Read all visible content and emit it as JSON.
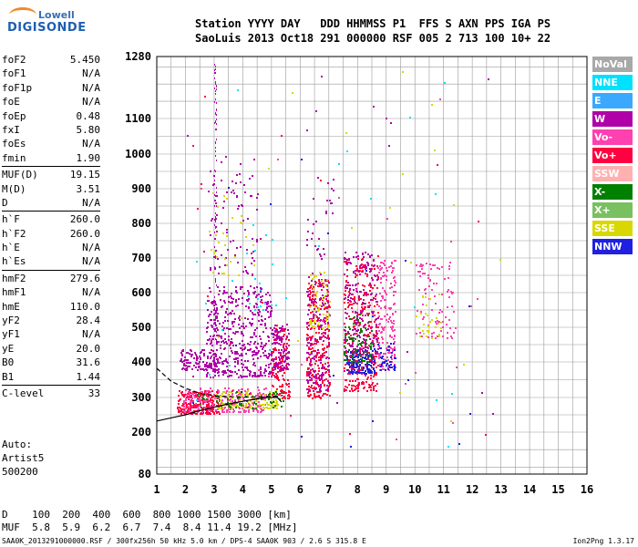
{
  "logo": {
    "line1": "Lowell",
    "line2": "DIGISONDE"
  },
  "header": {
    "line1": "Station YYYY DAY   DDD HHMMSS P1  FFS S AXN PPS IGA PS",
    "line2": "SaoLuis 2013 Oct18 291 000000 RSF 005 2 713 100 10+ 22"
  },
  "params": [
    {
      "k": "foF2",
      "v": "5.450"
    },
    {
      "k": "foF1",
      "v": "N/A"
    },
    {
      "k": "foF1p",
      "v": "N/A"
    },
    {
      "k": "foE",
      "v": "N/A"
    },
    {
      "k": "foEp",
      "v": "0.48"
    },
    {
      "k": "fxI",
      "v": "5.80"
    },
    {
      "k": "foEs",
      "v": "N/A"
    },
    {
      "k": "fmin",
      "v": "1.90"
    },
    {
      "k": "MUF(D)",
      "v": "19.15",
      "sep": true
    },
    {
      "k": "M(D)",
      "v": "3.51"
    },
    {
      "k": "D",
      "v": "N/A"
    },
    {
      "k": "h`F",
      "v": "260.0",
      "sep": true
    },
    {
      "k": "h`F2",
      "v": "260.0"
    },
    {
      "k": "h`E",
      "v": "N/A"
    },
    {
      "k": "h`Es",
      "v": "N/A"
    },
    {
      "k": "hmF2",
      "v": "279.6",
      "sep": true
    },
    {
      "k": "hmF1",
      "v": "N/A"
    },
    {
      "k": "hmE",
      "v": "110.0"
    },
    {
      "k": "yF2",
      "v": "28.4"
    },
    {
      "k": "yF1",
      "v": "N/A"
    },
    {
      "k": "yE",
      "v": "20.0"
    },
    {
      "k": "B0",
      "v": "31.6"
    },
    {
      "k": "B1",
      "v": "1.44"
    },
    {
      "k": "C-level",
      "v": "33",
      "sep": true
    }
  ],
  "auto": [
    "Auto:",
    "Artist5",
    "500200"
  ],
  "legend": [
    {
      "label": "NoVal",
      "color": "#a8a8a8"
    },
    {
      "label": "NNE",
      "color": "#00e0ff"
    },
    {
      "label": "E",
      "color": "#3aa8ff"
    },
    {
      "label": "W",
      "color": "#b000a8"
    },
    {
      "label": "Vo-",
      "color": "#ff40b0"
    },
    {
      "label": "Vo+",
      "color": "#ff0040"
    },
    {
      "label": "SSW",
      "color": "#ffb0b0"
    },
    {
      "label": "X-",
      "color": "#008000"
    },
    {
      "label": "X+",
      "color": "#78c060"
    },
    {
      "label": "SSE",
      "color": "#d8d800"
    },
    {
      "label": "NNW",
      "color": "#2020e0"
    }
  ],
  "bottom": {
    "line1": "D    100  200  400  600  800 1000 1500 3000 [km]",
    "line2": "MUF  5.8  5.9  6.2  6.7  7.4  8.4 11.4 19.2 [MHz]"
  },
  "footer": "SAA0K_2013291000000.RSF / 300fx256h 50 kHz 5.0 km / DPS-4 SAA0K 903 / 2.6 S 315.8 E",
  "footer_version": "Ion2Png 1.3.17",
  "chart_data": {
    "type": "scatter",
    "title": "",
    "xlabel": "",
    "ylabel": "",
    "xlim": [
      1,
      16
    ],
    "ylim": [
      80,
      1280
    ],
    "x_ticks": [
      "1",
      "2",
      "3",
      "4",
      "5",
      "6",
      "7",
      "8",
      "9",
      "10",
      "11",
      "12",
      "13",
      "14",
      "15",
      "16"
    ],
    "y_ticks": [
      "80",
      "200",
      "300",
      "400",
      "500",
      "600",
      "700",
      "800",
      "900",
      "1000",
      "1100",
      "1280"
    ],
    "y_tick_values": [
      80,
      200,
      300,
      400,
      500,
      600,
      700,
      800,
      900,
      1000,
      1100,
      1280
    ],
    "clusters": [
      {
        "color": "#ff0040",
        "xr": [
          1.7,
          3.2
        ],
        "yr": [
          255,
          320
        ],
        "n": 250
      },
      {
        "color": "#ff40b0",
        "xr": [
          1.9,
          4.8
        ],
        "yr": [
          260,
          330
        ],
        "n": 260
      },
      {
        "color": "#b000a8",
        "xr": [
          1.8,
          3.1
        ],
        "yr": [
          380,
          440
        ],
        "n": 120
      },
      {
        "color": "#b000a8",
        "xr": [
          2.7,
          5.0
        ],
        "yr": [
          360,
          620
        ],
        "n": 500
      },
      {
        "color": "#d8d800",
        "xr": [
          3.0,
          5.2
        ],
        "yr": [
          270,
          320
        ],
        "n": 120
      },
      {
        "color": "#008000",
        "xr": [
          2.3,
          5.5
        ],
        "yr": [
          270,
          320
        ],
        "n": 60
      },
      {
        "color": "#ff0040",
        "xr": [
          5.0,
          5.6
        ],
        "yr": [
          300,
          500
        ],
        "n": 140
      },
      {
        "color": "#b000a8",
        "xr": [
          5.0,
          5.6
        ],
        "yr": [
          380,
          510
        ],
        "n": 100
      },
      {
        "color": "#ff0040",
        "xr": [
          6.2,
          7.0
        ],
        "yr": [
          300,
          640
        ],
        "n": 300
      },
      {
        "color": "#b000a8",
        "xr": [
          6.2,
          7.0
        ],
        "yr": [
          320,
          660
        ],
        "n": 160
      },
      {
        "color": "#d8d800",
        "xr": [
          6.3,
          7.0
        ],
        "yr": [
          500,
          660
        ],
        "n": 60
      },
      {
        "color": "#2020e0",
        "xr": [
          7.6,
          8.6
        ],
        "yr": [
          370,
          440
        ],
        "n": 180
      },
      {
        "color": "#ff0040",
        "xr": [
          7.5,
          8.7
        ],
        "yr": [
          320,
          700
        ],
        "n": 320
      },
      {
        "color": "#b000a8",
        "xr": [
          7.5,
          8.7
        ],
        "yr": [
          420,
          720
        ],
        "n": 200
      },
      {
        "color": "#008000",
        "xr": [
          7.5,
          8.5
        ],
        "yr": [
          400,
          540
        ],
        "n": 80
      },
      {
        "color": "#ff40b0",
        "xr": [
          8.7,
          9.3
        ],
        "yr": [
          380,
          700
        ],
        "n": 160
      },
      {
        "color": "#2020e0",
        "xr": [
          8.7,
          9.3
        ],
        "yr": [
          380,
          460
        ],
        "n": 40
      },
      {
        "color": "#ff40b0",
        "xr": [
          10.0,
          11.4
        ],
        "yr": [
          470,
          690
        ],
        "n": 90
      },
      {
        "color": "#d8d800",
        "xr": [
          10.0,
          11.0
        ],
        "yr": [
          470,
          600
        ],
        "n": 30
      },
      {
        "color": "#b000a8",
        "xr": [
          2.8,
          4.5
        ],
        "yr": [
          650,
          1000
        ],
        "n": 80
      },
      {
        "color": "#d8d800",
        "xr": [
          2.8,
          4.5
        ],
        "yr": [
          650,
          900
        ],
        "n": 30
      },
      {
        "color": "#00e0ff",
        "xr": [
          4.0,
          5.6
        ],
        "yr": [
          550,
          800
        ],
        "n": 20
      },
      {
        "color": "#b000a8",
        "xr": [
          6.2,
          7.2
        ],
        "yr": [
          700,
          990
        ],
        "n": 30
      }
    ],
    "trace_x": [
      1.0,
      1.6,
      2.0,
      2.5,
      3.0,
      3.6,
      4.2,
      4.8,
      5.2,
      5.35
    ],
    "trace_y": [
      232,
      243,
      250,
      262,
      272,
      283,
      292,
      300,
      300,
      287
    ],
    "dash_x": [
      1.0,
      1.5,
      2.0,
      2.5,
      3.0,
      3.6,
      4.0,
      4.6,
      5.0,
      5.4
    ],
    "dash_y": [
      382,
      346,
      326,
      312,
      305,
      302,
      301,
      302,
      303,
      306
    ]
  }
}
